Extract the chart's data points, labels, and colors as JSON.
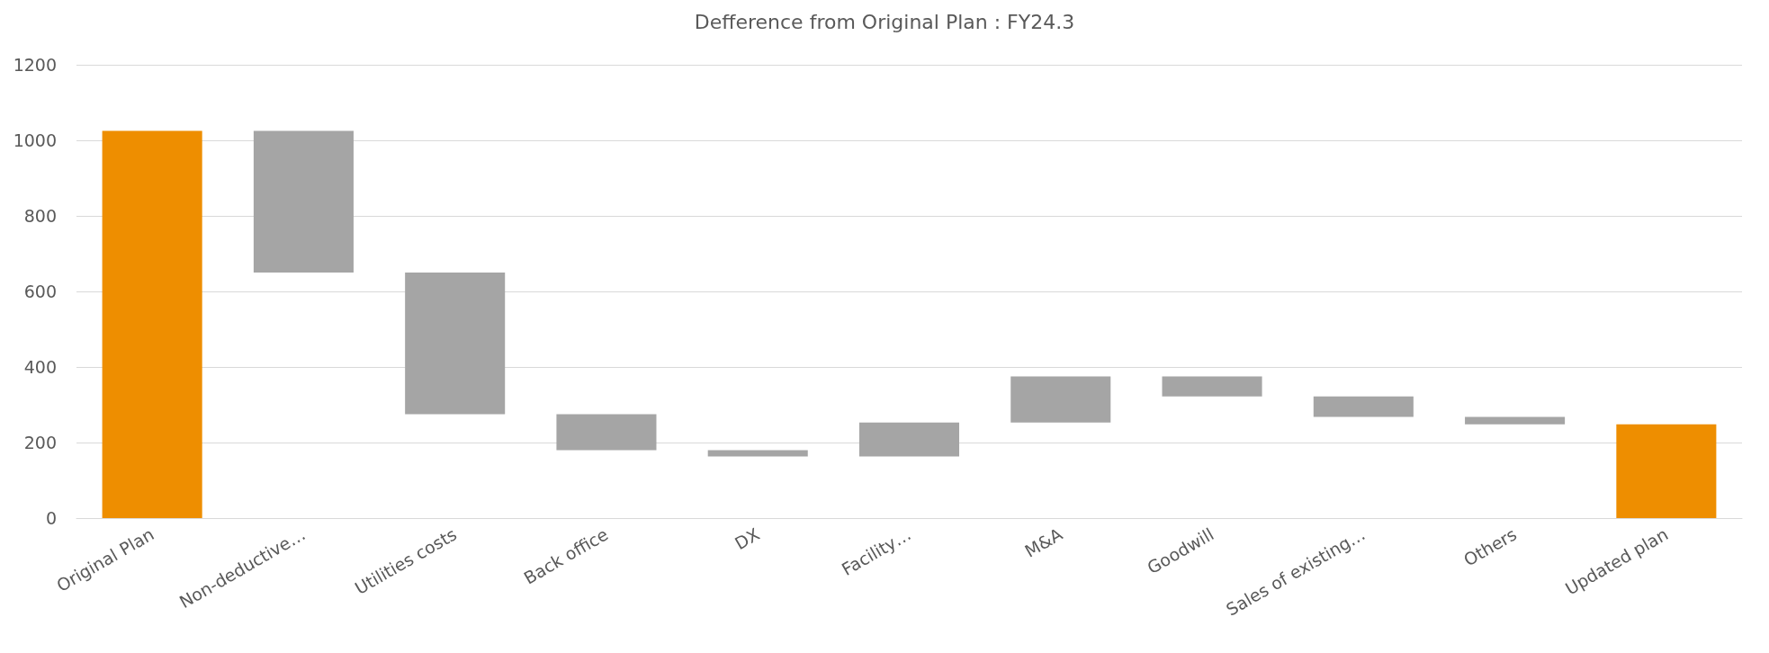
{
  "chart_data": {
    "type": "bar",
    "title": "Defference from Original Plan : FY24.3",
    "categories": [
      "Original Plan",
      "Non-deductive…",
      "Utilities costs",
      "Back office",
      "DX",
      "Facility…",
      "M&A",
      "Goodwill",
      "Sales of existing…",
      "Others",
      "Updated plan"
    ],
    "values": [
      1025,
      -375,
      -375,
      -95,
      -17,
      90,
      122,
      -53,
      -54,
      -20,
      248
    ],
    "base": [
      0,
      1025,
      650,
      275,
      180,
      163,
      253,
      375,
      322,
      268,
      0
    ],
    "colors": [
      "#ee8e00",
      "#a5a5a5",
      "#a5a5a5",
      "#a5a5a5",
      "#a5a5a5",
      "#a5a5a5",
      "#a5a5a5",
      "#a5a5a5",
      "#a5a5a5",
      "#a5a5a5",
      "#ee8e00"
    ],
    "ylim": [
      0,
      1200
    ],
    "yticks": [
      0,
      200,
      400,
      600,
      800,
      1000,
      1200
    ],
    "grid": "y"
  }
}
